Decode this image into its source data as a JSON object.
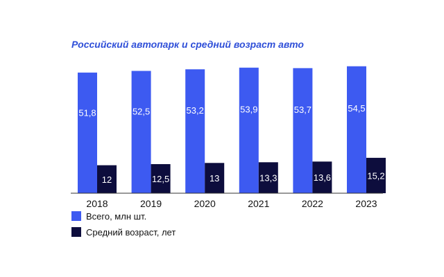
{
  "chart_data": {
    "type": "bar",
    "title": "Российский автопарк и средний возраст авто",
    "categories": [
      "2018",
      "2019",
      "2020",
      "2021",
      "2022",
      "2023"
    ],
    "series": [
      {
        "name": "Всего, млн шт.",
        "values": [
          51.8,
          52.5,
          53.2,
          53.9,
          53.7,
          54.5
        ],
        "labels": [
          "51,8",
          "52,5",
          "53,2",
          "53,9",
          "53,7",
          "54,5"
        ],
        "color": "#3d5af1"
      },
      {
        "name": "Средний возраст, лет",
        "values": [
          12,
          12.5,
          13,
          13.3,
          13.6,
          15.2
        ],
        "labels": [
          "12",
          "12,5",
          "13",
          "13,3",
          "13,6",
          "15,2"
        ],
        "color": "#0d0d3d"
      }
    ],
    "ylim": [
      0,
      55
    ],
    "grid": false,
    "legend_position": "bottom-left",
    "title_color": "#2f4fd8"
  }
}
